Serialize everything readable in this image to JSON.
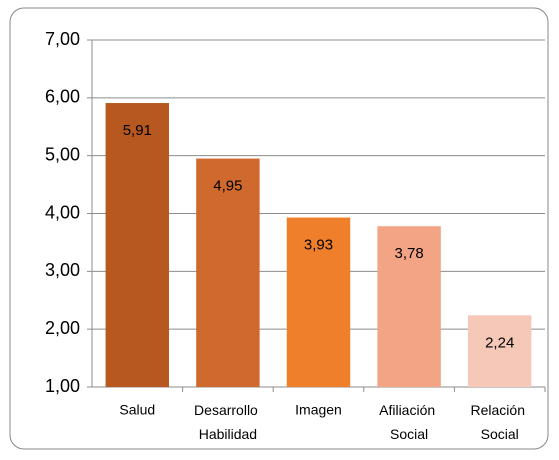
{
  "chart_data": {
    "type": "bar",
    "categories": [
      "Salud",
      "Desarrollo Habilidad",
      "Imagen",
      "Afiliación Social",
      "Relación Social"
    ],
    "values": [
      5.91,
      4.95,
      3.93,
      3.78,
      2.24
    ],
    "value_labels": [
      "5,91",
      "4,95",
      "3,93",
      "3,78",
      "2,24"
    ],
    "colors": [
      "#b6581f",
      "#d0692e",
      "#f07f2c",
      "#f3a484",
      "#f6c8b8"
    ],
    "ylim": [
      1,
      7
    ],
    "yticks": [
      {
        "value": 1,
        "label": "1,00"
      },
      {
        "value": 2,
        "label": "2,00"
      },
      {
        "value": 3,
        "label": "3,00"
      },
      {
        "value": 4,
        "label": "4,00"
      },
      {
        "value": 5,
        "label": "5,00"
      },
      {
        "value": 6,
        "label": "6,00"
      },
      {
        "value": 7,
        "label": "7,00"
      }
    ],
    "grid": true
  }
}
